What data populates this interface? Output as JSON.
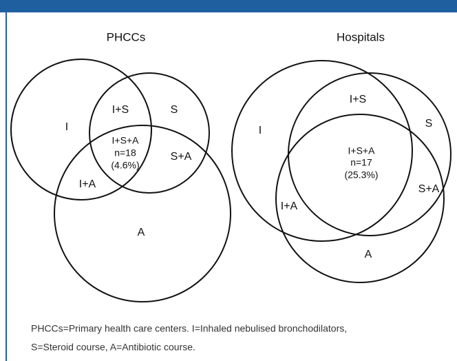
{
  "panels": [
    {
      "title": "PHCCs",
      "labels": [
        "I",
        "I+S",
        "S",
        "I+S+A",
        "n=18",
        "(4.6%)",
        "S+A",
        "I+A",
        "A"
      ]
    },
    {
      "title": "Hospitals",
      "labels": [
        "I+S",
        "S",
        "I",
        "I+S+A",
        "n=17",
        "(25.3%)",
        "S+A",
        "I+A",
        "A"
      ]
    }
  ],
  "caption": [
    "PHCCs=Primary health care centers. I=Inhaled nebulised bronchodilators,",
    "S=Steroid course, A=Antibiotic course."
  ]
}
